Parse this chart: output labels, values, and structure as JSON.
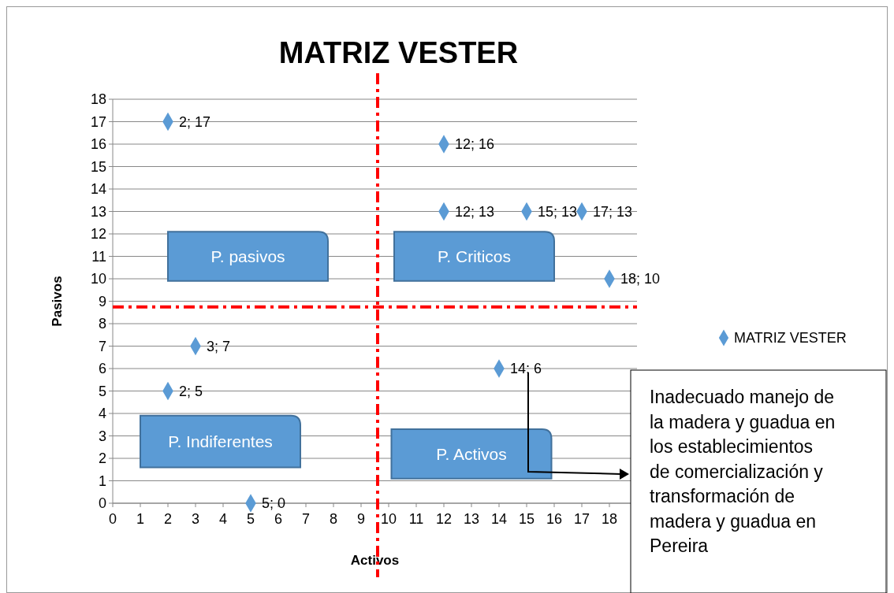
{
  "chart_data": {
    "type": "scatter",
    "title": "MATRIZ VESTER",
    "xlabel": "Activos",
    "ylabel": "Pasivos",
    "x": [
      2,
      12,
      12,
      15,
      17,
      18,
      3,
      14,
      2,
      5
    ],
    "series": [
      {
        "name": "MATRIZ VESTER",
        "color": "#5b9bd5",
        "values": [
          17,
          16,
          13,
          13,
          13,
          10,
          7,
          6,
          5,
          0
        ],
        "value_labels": [
          "2; 17",
          "12; 16",
          "12; 13",
          "15; 13",
          "17; 13",
          "18; 10",
          "3; 7",
          "14; 6",
          "2; 5",
          "5; 0"
        ]
      }
    ],
    "xlim": [
      0,
      19
    ],
    "xticks": [
      0,
      1,
      2,
      3,
      4,
      5,
      6,
      7,
      8,
      9,
      10,
      11,
      12,
      13,
      14,
      15,
      16,
      17,
      18
    ],
    "ylim": [
      0,
      18
    ],
    "yticks": [
      0,
      1,
      2,
      3,
      4,
      5,
      6,
      7,
      8,
      9,
      10,
      11,
      12,
      13,
      14,
      15,
      16,
      17,
      18
    ],
    "grid": "y",
    "legend": "right",
    "marker": "diamond",
    "ref_lines": [
      {
        "axis": "x",
        "value": 9.6,
        "color": "#ff0000",
        "line_style": "dashdot"
      },
      {
        "axis": "y",
        "value": 8.75,
        "color": "#ff0000",
        "line_style": "dashdot"
      }
    ],
    "annotations": [
      "P. pasivos",
      "P. Criticos",
      "P. Indiferentes",
      "P. Activos",
      "Inadecuado manejo de la madera y guadua en los establecimientos de comercialización y transformación de madera y guadua en Pereira"
    ]
  }
}
